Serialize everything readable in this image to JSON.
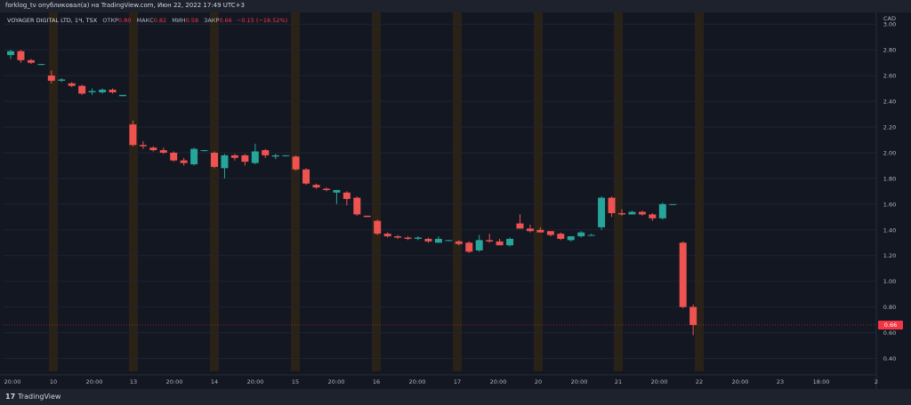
{
  "header": "forklog_tv опубликовал(а) на TradingView.com, Июн 22, 2022 17:49 UTC+3",
  "footer": {
    "logo_mark": "17",
    "brand": "TradingView"
  },
  "legend": {
    "symbol": "VOYAGER DIGITAL LTD, 1Ч, TSX",
    "open_label": "ОТКР",
    "open": "0.80",
    "high_label": "МАКС",
    "high": "0.82",
    "low_label": "МИН",
    "low": "0.58",
    "close_label": "ЗАКР",
    "close": "0.66",
    "change": "−0.15 (−18.52%)"
  },
  "currency": "CAD",
  "last_price": "0.66",
  "colors": {
    "up": "#26a69a",
    "down": "#ef5350",
    "session": "#2a2216",
    "bg": "#131722"
  },
  "chart_data": {
    "type": "candlestick",
    "title": "VOYAGER DIGITAL LTD, 1Ч, TSX",
    "ylim": [
      0.3,
      3.05
    ],
    "y_ticks": [
      "3.00",
      "2.80",
      "2.60",
      "2.40",
      "2.20",
      "2.00",
      "1.80",
      "1.60",
      "1.40",
      "1.20",
      "1.00",
      "0.80",
      "0.60",
      "0.40"
    ],
    "x_ticks": [
      "20:00",
      "10",
      "20:00",
      "13",
      "20:00",
      "14",
      "20:00",
      "15",
      "20:00",
      "16",
      "20:00",
      "17",
      "20:00",
      "20",
      "20:00",
      "21",
      "20:00",
      "22",
      "20:00",
      "23",
      "18:00",
      "2"
    ],
    "candles": [
      {
        "o": 2.76,
        "h": 2.8,
        "l": 2.73,
        "c": 2.79
      },
      {
        "o": 2.79,
        "h": 2.8,
        "l": 2.7,
        "c": 2.72
      },
      {
        "o": 2.72,
        "h": 2.73,
        "l": 2.69,
        "c": 2.7
      },
      {
        "o": 2.69,
        "h": 2.69,
        "l": 2.68,
        "c": 2.69
      },
      {
        "o": 2.6,
        "h": 2.64,
        "l": 2.54,
        "c": 2.56
      },
      {
        "o": 2.56,
        "h": 2.58,
        "l": 2.55,
        "c": 2.57
      },
      {
        "o": 2.54,
        "h": 2.55,
        "l": 2.51,
        "c": 2.52
      },
      {
        "o": 2.52,
        "h": 2.53,
        "l": 2.45,
        "c": 2.46
      },
      {
        "o": 2.47,
        "h": 2.5,
        "l": 2.45,
        "c": 2.48
      },
      {
        "o": 2.47,
        "h": 2.5,
        "l": 2.46,
        "c": 2.49
      },
      {
        "o": 2.49,
        "h": 2.5,
        "l": 2.46,
        "c": 2.47
      },
      {
        "o": 2.44,
        "h": 2.45,
        "l": 2.44,
        "c": 2.45
      },
      {
        "o": 2.22,
        "h": 2.25,
        "l": 2.05,
        "c": 2.06
      },
      {
        "o": 2.06,
        "h": 2.09,
        "l": 2.03,
        "c": 2.05
      },
      {
        "o": 2.04,
        "h": 2.05,
        "l": 2.01,
        "c": 2.02
      },
      {
        "o": 2.02,
        "h": 2.04,
        "l": 1.99,
        "c": 2.0
      },
      {
        "o": 2.0,
        "h": 2.01,
        "l": 1.93,
        "c": 1.94
      },
      {
        "o": 1.94,
        "h": 1.96,
        "l": 1.9,
        "c": 1.92
      },
      {
        "o": 1.91,
        "h": 2.04,
        "l": 1.9,
        "c": 2.03
      },
      {
        "o": 2.02,
        "h": 2.02,
        "l": 2.01,
        "c": 2.02
      },
      {
        "o": 2.0,
        "h": 2.01,
        "l": 1.88,
        "c": 1.89
      },
      {
        "o": 1.88,
        "h": 1.99,
        "l": 1.8,
        "c": 1.98
      },
      {
        "o": 1.98,
        "h": 1.99,
        "l": 1.94,
        "c": 1.96
      },
      {
        "o": 1.98,
        "h": 1.99,
        "l": 1.9,
        "c": 1.93
      },
      {
        "o": 1.92,
        "h": 2.07,
        "l": 1.91,
        "c": 2.01
      },
      {
        "o": 2.02,
        "h": 2.03,
        "l": 1.96,
        "c": 1.98
      },
      {
        "o": 1.97,
        "h": 1.99,
        "l": 1.95,
        "c": 1.98
      },
      {
        "o": 1.98,
        "h": 1.98,
        "l": 1.97,
        "c": 1.98
      },
      {
        "o": 1.97,
        "h": 1.98,
        "l": 1.86,
        "c": 1.87
      },
      {
        "o": 1.87,
        "h": 1.88,
        "l": 1.75,
        "c": 1.76
      },
      {
        "o": 1.75,
        "h": 1.76,
        "l": 1.72,
        "c": 1.73
      },
      {
        "o": 1.72,
        "h": 1.73,
        "l": 1.7,
        "c": 1.71
      },
      {
        "o": 1.69,
        "h": 1.71,
        "l": 1.6,
        "c": 1.71
      },
      {
        "o": 1.69,
        "h": 1.7,
        "l": 1.59,
        "c": 1.64
      },
      {
        "o": 1.65,
        "h": 1.66,
        "l": 1.51,
        "c": 1.52
      },
      {
        "o": 1.51,
        "h": 1.51,
        "l": 1.5,
        "c": 1.5
      },
      {
        "o": 1.47,
        "h": 1.48,
        "l": 1.36,
        "c": 1.37
      },
      {
        "o": 1.37,
        "h": 1.38,
        "l": 1.34,
        "c": 1.35
      },
      {
        "o": 1.35,
        "h": 1.36,
        "l": 1.33,
        "c": 1.34
      },
      {
        "o": 1.34,
        "h": 1.35,
        "l": 1.32,
        "c": 1.33
      },
      {
        "o": 1.33,
        "h": 1.35,
        "l": 1.32,
        "c": 1.34
      },
      {
        "o": 1.33,
        "h": 1.34,
        "l": 1.3,
        "c": 1.31
      },
      {
        "o": 1.3,
        "h": 1.35,
        "l": 1.3,
        "c": 1.33
      },
      {
        "o": 1.32,
        "h": 1.32,
        "l": 1.31,
        "c": 1.32
      },
      {
        "o": 1.31,
        "h": 1.32,
        "l": 1.28,
        "c": 1.29
      },
      {
        "o": 1.3,
        "h": 1.31,
        "l": 1.22,
        "c": 1.23
      },
      {
        "o": 1.24,
        "h": 1.36,
        "l": 1.23,
        "c": 1.32
      },
      {
        "o": 1.32,
        "h": 1.37,
        "l": 1.3,
        "c": 1.31
      },
      {
        "o": 1.31,
        "h": 1.33,
        "l": 1.29,
        "c": 1.28
      },
      {
        "o": 1.28,
        "h": 1.34,
        "l": 1.27,
        "c": 1.33
      },
      {
        "o": 1.45,
        "h": 1.52,
        "l": 1.42,
        "c": 1.41
      },
      {
        "o": 1.41,
        "h": 1.44,
        "l": 1.38,
        "c": 1.39
      },
      {
        "o": 1.4,
        "h": 1.42,
        "l": 1.38,
        "c": 1.38
      },
      {
        "o": 1.39,
        "h": 1.39,
        "l": 1.35,
        "c": 1.36
      },
      {
        "o": 1.37,
        "h": 1.38,
        "l": 1.32,
        "c": 1.33
      },
      {
        "o": 1.32,
        "h": 1.35,
        "l": 1.31,
        "c": 1.35
      },
      {
        "o": 1.35,
        "h": 1.39,
        "l": 1.34,
        "c": 1.38
      },
      {
        "o": 1.36,
        "h": 1.37,
        "l": 1.36,
        "c": 1.36
      },
      {
        "o": 1.42,
        "h": 1.66,
        "l": 1.4,
        "c": 1.65
      },
      {
        "o": 1.65,
        "h": 1.66,
        "l": 1.5,
        "c": 1.53
      },
      {
        "o": 1.53,
        "h": 1.56,
        "l": 1.51,
        "c": 1.52
      },
      {
        "o": 1.52,
        "h": 1.55,
        "l": 1.52,
        "c": 1.54
      },
      {
        "o": 1.54,
        "h": 1.55,
        "l": 1.51,
        "c": 1.52
      },
      {
        "o": 1.52,
        "h": 1.53,
        "l": 1.47,
        "c": 1.49
      },
      {
        "o": 1.49,
        "h": 1.61,
        "l": 1.48,
        "c": 1.6
      },
      {
        "o": 1.6,
        "h": 1.6,
        "l": 1.6,
        "c": 1.6
      },
      {
        "o": 1.3,
        "h": 1.31,
        "l": 0.79,
        "c": 0.8
      },
      {
        "o": 0.8,
        "h": 0.82,
        "l": 0.58,
        "c": 0.66
      }
    ]
  }
}
